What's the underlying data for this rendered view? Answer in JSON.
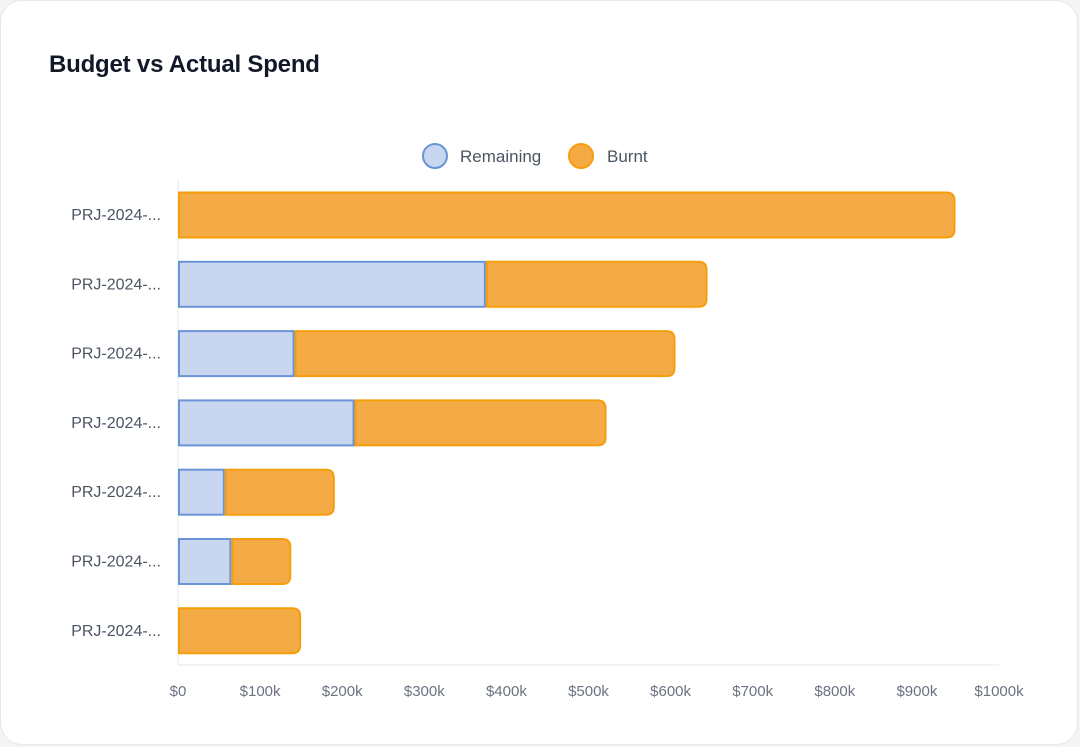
{
  "card": {
    "title": "Budget vs Actual Spend"
  },
  "chart_data": {
    "type": "bar",
    "orientation": "horizontal",
    "stacked": true,
    "categories": [
      "PRJ-2024-...",
      "PRJ-2024-...",
      "PRJ-2024-...",
      "PRJ-2024-...",
      "PRJ-2024-...",
      "PRJ-2024-...",
      "PRJ-2024-..."
    ],
    "series": [
      {
        "name": "Remaining",
        "values": [
          0,
          375000,
          142000,
          215000,
          57000,
          65000,
          0
        ],
        "fill": "#c8d6f0",
        "stroke": "#6b94d8"
      },
      {
        "name": "Burnt",
        "values": [
          947000,
          270000,
          464000,
          307000,
          134000,
          73000,
          150000
        ],
        "fill": "#f5ab45",
        "stroke": "#f59e0b"
      }
    ],
    "xlim": [
      0,
      1000000
    ],
    "xticks": [
      "$0",
      "$100k",
      "$200k",
      "$300k",
      "$400k",
      "$500k",
      "$600k",
      "$700k",
      "$800k",
      "$900k",
      "$1000k"
    ],
    "legend_position": "top-center",
    "grid": false,
    "xlabel": "",
    "ylabel": ""
  }
}
